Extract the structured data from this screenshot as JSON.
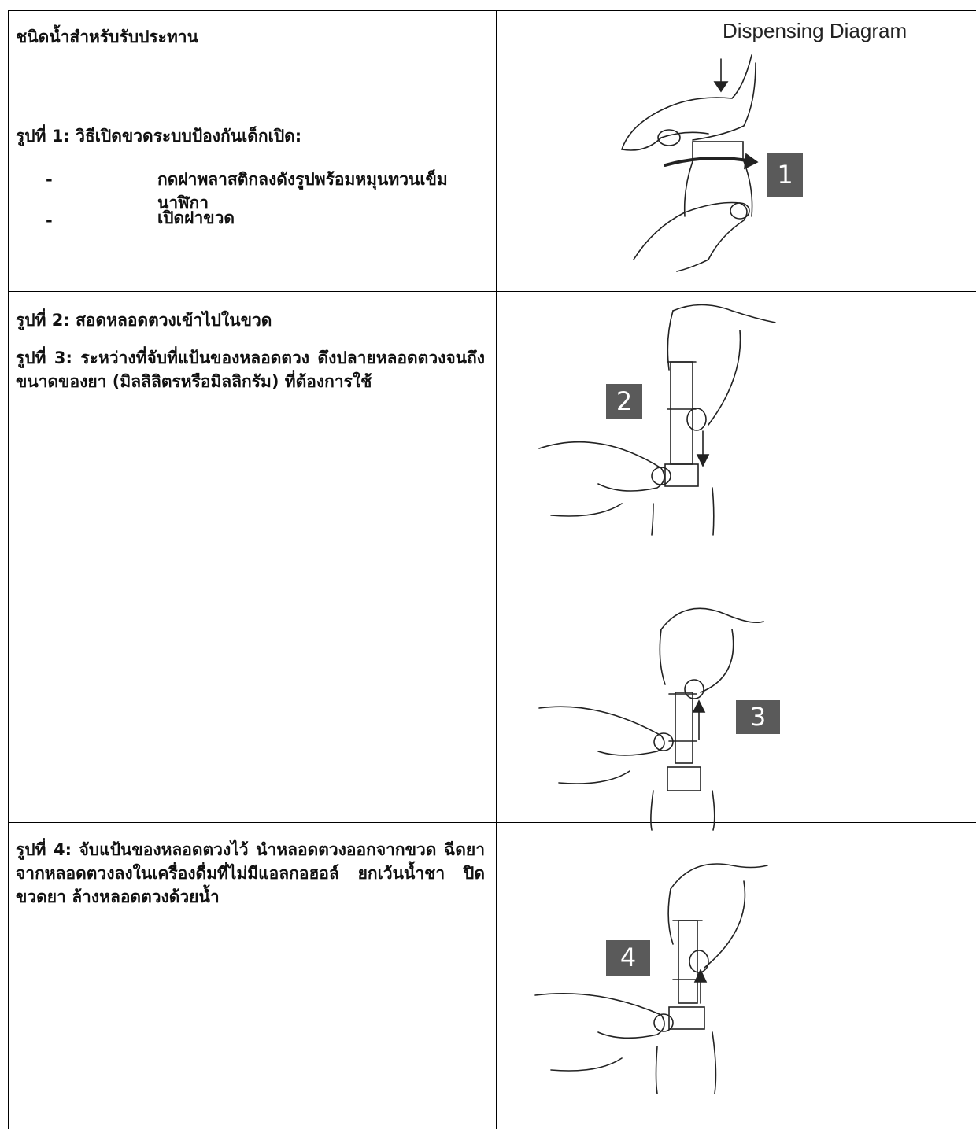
{
  "table": {
    "rows": [
      {
        "left": {
          "heading": "ชนิดน้ำสำหรับรับประทาน",
          "paragraphs": [
            "รูปที่ 1: วิธีเปิดขวดระบบป้องกันเด็กเปิด:"
          ],
          "steps": [
            {
              "bullet": "-",
              "text": "กดฝาพลาสติกลงดังรูปพร้อมหมุนทวนเข็มนาฬิกา"
            },
            {
              "bullet": "-",
              "text": "เปิดฝาขวด"
            }
          ]
        },
        "right": {
          "title": "Dispensing Diagram",
          "figures": [
            "1"
          ]
        }
      },
      {
        "left": {
          "paragraphs": [
            "รูปที่ 2: สอดหลอดตวงเข้าไปในขวด",
            "รูปที่ 3: ระหว่างที่จับที่แป้นของหลอดตวง ดึงปลายหลอดตวงจนถึงขนาดของยา (มิลลิลิตรหรือมิลลิกรัม) ที่ต้องการใช้"
          ]
        },
        "right": {
          "figures": [
            "2",
            "3"
          ]
        }
      },
      {
        "left": {
          "paragraphs": [
            "รูปที่ 4: จับแป้นของหลอดตวงไว้ นำหลอดตวงออกจากขวด ฉีดยาจากหลอดตวงลงในเครื่องดื่มที่ไม่มีแอลกอฮอล์ ยกเว้นน้ำชา ปิดขวดยา ล้างหลอดตวงด้วยน้ำ"
          ]
        },
        "right": {
          "figures": [
            "4"
          ]
        }
      }
    ]
  }
}
